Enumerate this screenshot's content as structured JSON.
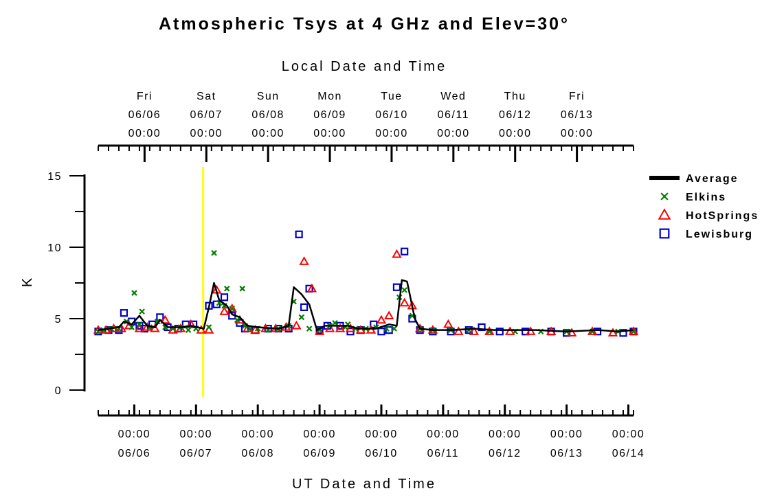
{
  "chart_data": {
    "type": "scatter",
    "title": "Atmospheric Tsys at 4 GHz and Elev=30°",
    "top_axis_title": "Local Date and Time",
    "bottom_axis_title": "UT Date and Time",
    "ylabel": "K",
    "ylim": [
      0,
      15
    ],
    "y_ticks": [
      "0",
      "5",
      "10",
      "15"
    ],
    "xlim_ut": [
      "06/05 10:00",
      "06/14 02:00"
    ],
    "top_ticks": [
      {
        "day": "Fri",
        "date": "06/06",
        "time": "00:00"
      },
      {
        "day": "Sat",
        "date": "06/07",
        "time": "00:00"
      },
      {
        "day": "Sun",
        "date": "06/08",
        "time": "00:00"
      },
      {
        "day": "Mon",
        "date": "06/09",
        "time": "00:00"
      },
      {
        "day": "Tue",
        "date": "06/10",
        "time": "00:00"
      },
      {
        "day": "Wed",
        "date": "06/11",
        "time": "00:00"
      },
      {
        "day": "Thu",
        "date": "06/12",
        "time": "00:00"
      },
      {
        "day": "Fri",
        "date": "06/13",
        "time": "00:00"
      }
    ],
    "bottom_ticks": [
      {
        "time": "00:00",
        "date": "06/06"
      },
      {
        "time": "00:00",
        "date": "06/07"
      },
      {
        "time": "00:00",
        "date": "06/08"
      },
      {
        "time": "00:00",
        "date": "06/09"
      },
      {
        "time": "00:00",
        "date": "06/10"
      },
      {
        "time": "00:00",
        "date": "06/11"
      },
      {
        "time": "00:00",
        "date": "06/12"
      },
      {
        "time": "00:00",
        "date": "06/13"
      },
      {
        "time": "00:00",
        "date": "06/14"
      }
    ],
    "marker_line": {
      "x": "06/07 02:45",
      "color": "#ffff00"
    },
    "legend_position": "right",
    "series": [
      {
        "name": "Average",
        "marker": "line",
        "color": "#000000",
        "points": [
          [
            "06/05 10:00",
            4.2
          ],
          [
            "06/05 14:00",
            4.3
          ],
          [
            "06/05 18:00",
            4.4
          ],
          [
            "06/05 20:00",
            4.8
          ],
          [
            "06/05 23:00",
            4.6
          ],
          [
            "06/06 02:00",
            5.2
          ],
          [
            "06/06 05:00",
            4.5
          ],
          [
            "06/06 08:00",
            4.4
          ],
          [
            "06/06 10:00",
            4.9
          ],
          [
            "06/06 13:00",
            4.4
          ],
          [
            "06/06 18:00",
            4.4
          ],
          [
            "06/06 22:00",
            4.5
          ],
          [
            "06/07 03:00",
            4.3
          ],
          [
            "06/07 05:00",
            5.8
          ],
          [
            "06/07 07:00",
            7.5
          ],
          [
            "06/07 09:00",
            6.3
          ],
          [
            "06/07 12:00",
            5.9
          ],
          [
            "06/07 14:00",
            5.3
          ],
          [
            "06/07 17:00",
            5.1
          ],
          [
            "06/07 20:00",
            4.5
          ],
          [
            "06/08 00:00",
            4.4
          ],
          [
            "06/08 08:00",
            4.3
          ],
          [
            "06/08 12:00",
            4.5
          ],
          [
            "06/08 14:00",
            7.2
          ],
          [
            "06/08 17:00",
            6.7
          ],
          [
            "06/08 20:00",
            6.0
          ],
          [
            "06/08 23:00",
            4.2
          ],
          [
            "06/09 02:00",
            4.5
          ],
          [
            "06/09 07:00",
            4.5
          ],
          [
            "06/09 11:00",
            4.5
          ],
          [
            "06/09 15:00",
            4.3
          ],
          [
            "06/09 22:00",
            4.3
          ],
          [
            "06/10 03:00",
            4.6
          ],
          [
            "06/10 06:00",
            4.5
          ],
          [
            "06/10 08:00",
            7.7
          ],
          [
            "06/10 10:00",
            7.6
          ],
          [
            "06/10 13:00",
            5.0
          ],
          [
            "06/10 15:00",
            4.3
          ],
          [
            "06/10 20:00",
            4.2
          ],
          [
            "06/11 04:00",
            4.2
          ],
          [
            "06/11 12:00",
            4.3
          ],
          [
            "06/11 20:00",
            4.2
          ],
          [
            "06/12 12:00",
            4.2
          ],
          [
            "06/13 00:00",
            4.1
          ],
          [
            "06/13 12:00",
            4.2
          ],
          [
            "06/13 20:00",
            4.1
          ],
          [
            "06/14 02:00",
            4.2
          ]
        ]
      },
      {
        "name": "Elkins",
        "marker": "x",
        "color": "#008000",
        "points": [
          [
            "06/05 10:00",
            4.1
          ],
          [
            "06/05 12:00",
            4.2
          ],
          [
            "06/05 15:00",
            4.3
          ],
          [
            "06/05 18:00",
            4.3
          ],
          [
            "06/05 21:00",
            4.8
          ],
          [
            "06/05 23:00",
            4.4
          ],
          [
            "06/06 00:00",
            6.8
          ],
          [
            "06/06 02:00",
            4.6
          ],
          [
            "06/06 03:00",
            5.5
          ],
          [
            "06/06 06:00",
            4.4
          ],
          [
            "06/06 09:00",
            4.8
          ],
          [
            "06/06 12:00",
            4.4
          ],
          [
            "06/06 15:00",
            4.3
          ],
          [
            "06/06 18:00",
            4.4
          ],
          [
            "06/06 21:00",
            4.2
          ],
          [
            "06/07 00:00",
            4.3
          ],
          [
            "06/07 05:00",
            4.4
          ],
          [
            "06/07 07:00",
            9.6
          ],
          [
            "06/07 09:00",
            6.1
          ],
          [
            "06/07 11:00",
            5.9
          ],
          [
            "06/07 12:00",
            7.1
          ],
          [
            "06/07 14:00",
            5.7
          ],
          [
            "06/07 16:00",
            4.9
          ],
          [
            "06/07 18:00",
            7.1
          ],
          [
            "06/07 19:00",
            4.5
          ],
          [
            "06/07 21:00",
            4.3
          ],
          [
            "06/08 00:00",
            4.3
          ],
          [
            "06/08 04:00",
            4.2
          ],
          [
            "06/08 08:00",
            4.3
          ],
          [
            "06/08 12:00",
            4.5
          ],
          [
            "06/08 14:00",
            6.2
          ],
          [
            "06/08 17:00",
            5.1
          ],
          [
            "06/08 20:00",
            4.3
          ],
          [
            "06/09 00:00",
            4.2
          ],
          [
            "06/09 04:00",
            4.5
          ],
          [
            "06/09 06:00",
            4.7
          ],
          [
            "06/09 10:00",
            4.4
          ],
          [
            "06/09 11:00",
            4.6
          ],
          [
            "06/09 14:00",
            4.3
          ],
          [
            "06/09 18:00",
            4.3
          ],
          [
            "06/09 22:00",
            4.4
          ],
          [
            "06/10 02:00",
            4.3
          ],
          [
            "06/10 05:00",
            4.3
          ],
          [
            "06/10 07:00",
            6.5
          ],
          [
            "06/10 09:00",
            7.0
          ],
          [
            "06/10 12:00",
            5.2
          ],
          [
            "06/10 15:00",
            4.3
          ],
          [
            "06/10 20:00",
            4.2
          ],
          [
            "06/11 03:00",
            4.2
          ],
          [
            "06/11 10:00",
            4.2
          ],
          [
            "06/11 18:00",
            4.1
          ],
          [
            "06/12 04:00",
            4.1
          ],
          [
            "06/12 14:00",
            4.1
          ],
          [
            "06/13 00:00",
            4.1
          ],
          [
            "06/13 10:00",
            4.1
          ],
          [
            "06/13 20:00",
            4.1
          ],
          [
            "06/14 02:00",
            4.1
          ]
        ]
      },
      {
        "name": "HotSprings",
        "marker": "triangle",
        "color": "#ff0000",
        "points": [
          [
            "06/05 10:00",
            4.2
          ],
          [
            "06/05 13:00",
            4.2
          ],
          [
            "06/05 16:00",
            4.3
          ],
          [
            "06/05 19:00",
            4.3
          ],
          [
            "06/05 22:00",
            4.5
          ],
          [
            "06/06 02:00",
            4.3
          ],
          [
            "06/06 05:00",
            4.4
          ],
          [
            "06/06 08:00",
            4.3
          ],
          [
            "06/06 12:00",
            4.9
          ],
          [
            "06/06 15:00",
            4.2
          ],
          [
            "06/06 18:00",
            4.3
          ],
          [
            "06/06 22:00",
            4.6
          ],
          [
            "06/07 02:00",
            4.2
          ],
          [
            "06/07 05:00",
            4.2
          ],
          [
            "06/07 08:00",
            7.0
          ],
          [
            "06/07 11:00",
            5.5
          ],
          [
            "06/07 14:00",
            5.7
          ],
          [
            "06/07 17:00",
            4.9
          ],
          [
            "06/07 20:00",
            4.3
          ],
          [
            "06/07 23:00",
            4.2
          ],
          [
            "06/08 03:00",
            4.3
          ],
          [
            "06/08 07:00",
            4.3
          ],
          [
            "06/08 11:00",
            4.4
          ],
          [
            "06/08 15:00",
            4.5
          ],
          [
            "06/08 18:00",
            9.0
          ],
          [
            "06/08 21:00",
            7.1
          ],
          [
            "06/09 00:00",
            4.1
          ],
          [
            "06/09 04:00",
            4.3
          ],
          [
            "06/09 08:00",
            4.3
          ],
          [
            "06/09 12:00",
            4.3
          ],
          [
            "06/09 16:00",
            4.2
          ],
          [
            "06/09 20:00",
            4.2
          ],
          [
            "06/10 00:00",
            4.9
          ],
          [
            "06/10 03:00",
            5.2
          ],
          [
            "06/10 06:00",
            9.5
          ],
          [
            "06/10 09:00",
            6.1
          ],
          [
            "06/10 12:00",
            5.9
          ],
          [
            "06/10 15:00",
            4.3
          ],
          [
            "06/10 20:00",
            4.2
          ],
          [
            "06/11 02:00",
            4.6
          ],
          [
            "06/11 06:00",
            4.1
          ],
          [
            "06/11 12:00",
            4.1
          ],
          [
            "06/11 18:00",
            4.1
          ],
          [
            "06/12 02:00",
            4.1
          ],
          [
            "06/12 10:00",
            4.1
          ],
          [
            "06/12 18:00",
            4.1
          ],
          [
            "06/13 02:00",
            4.0
          ],
          [
            "06/13 10:00",
            4.1
          ],
          [
            "06/13 18:00",
            4.0
          ],
          [
            "06/14 02:00",
            4.1
          ]
        ]
      },
      {
        "name": "Lewisburg",
        "marker": "square",
        "color": "#0000cc",
        "points": [
          [
            "06/05 10:00",
            4.1
          ],
          [
            "06/05 14:00",
            4.2
          ],
          [
            "06/05 18:00",
            4.2
          ],
          [
            "06/05 20:00",
            5.4
          ],
          [
            "06/05 23:00",
            4.8
          ],
          [
            "06/06 02:00",
            4.5
          ],
          [
            "06/06 04:00",
            4.3
          ],
          [
            "06/06 07:00",
            4.6
          ],
          [
            "06/06 10:00",
            5.1
          ],
          [
            "06/06 13:00",
            4.4
          ],
          [
            "06/06 17:00",
            4.3
          ],
          [
            "06/06 20:00",
            4.6
          ],
          [
            "06/06 23:00",
            4.6
          ],
          [
            "06/07 05:00",
            5.9
          ],
          [
            "06/07 08:00",
            6.0
          ],
          [
            "06/07 11:00",
            6.5
          ],
          [
            "06/07 14:00",
            5.2
          ],
          [
            "06/07 17:00",
            4.7
          ],
          [
            "06/07 19:00",
            4.3
          ],
          [
            "06/07 23:00",
            4.2
          ],
          [
            "06/08 04:00",
            4.3
          ],
          [
            "06/08 08:00",
            4.3
          ],
          [
            "06/08 12:00",
            4.3
          ],
          [
            "06/08 16:00",
            10.9
          ],
          [
            "06/08 18:00",
            5.8
          ],
          [
            "06/08 20:00",
            7.1
          ],
          [
            "06/09 00:00",
            4.2
          ],
          [
            "06/09 03:00",
            4.5
          ],
          [
            "06/09 08:00",
            4.5
          ],
          [
            "06/09 12:00",
            4.1
          ],
          [
            "06/09 16:00",
            4.2
          ],
          [
            "06/09 21:00",
            4.6
          ],
          [
            "06/10 00:00",
            4.1
          ],
          [
            "06/10 03:00",
            4.2
          ],
          [
            "06/10 06:00",
            7.2
          ],
          [
            "06/10 09:00",
            9.7
          ],
          [
            "06/10 12:00",
            5.0
          ],
          [
            "06/10 15:00",
            4.2
          ],
          [
            "06/10 20:00",
            4.1
          ],
          [
            "06/11 03:00",
            4.1
          ],
          [
            "06/11 10:00",
            4.2
          ],
          [
            "06/11 15:00",
            4.4
          ],
          [
            "06/11 22:00",
            4.1
          ],
          [
            "06/12 08:00",
            4.1
          ],
          [
            "06/12 18:00",
            4.1
          ],
          [
            "06/13 00:00",
            4.0
          ],
          [
            "06/13 12:00",
            4.1
          ],
          [
            "06/13 22:00",
            4.0
          ],
          [
            "06/14 02:00",
            4.1
          ]
        ]
      }
    ]
  }
}
